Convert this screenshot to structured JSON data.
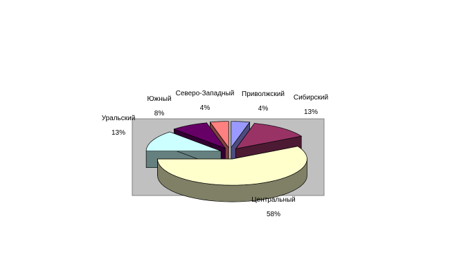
{
  "chart_data": {
    "type": "pie",
    "style": "3d-exploded",
    "categories": [
      "Приволжский",
      "Сибирский",
      "Центральный",
      "Уральский",
      "Южный",
      "Северо-Западный"
    ],
    "values": [
      4,
      13,
      58,
      13,
      8,
      4
    ],
    "labels": [
      "4%",
      "13%",
      "58%",
      "13%",
      "8%",
      "4%"
    ],
    "colors": [
      "#9999ff",
      "#993366",
      "#ffffcc",
      "#ccffff",
      "#660066",
      "#ff8080"
    ],
    "side_colors": [
      "#4d4d80",
      "#4d1a33",
      "#808066",
      "#668080",
      "#330033",
      "#804040"
    ],
    "plot_background": "#c0c0c0",
    "legend": "none"
  }
}
